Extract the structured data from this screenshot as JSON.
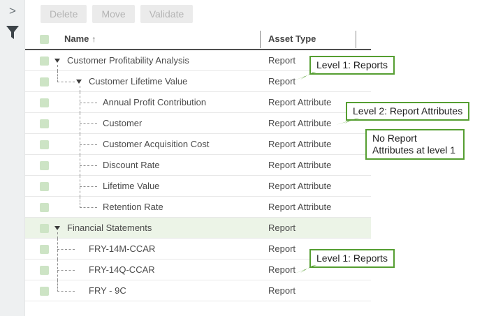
{
  "sidebar": {
    "chevron_glyph": ">",
    "filter_icon": "funnel"
  },
  "toolbar": {
    "buttons": [
      {
        "label": "Delete"
      },
      {
        "label": "Move"
      },
      {
        "label": "Validate"
      }
    ]
  },
  "table": {
    "columns": [
      {
        "label": "Name",
        "sort_indicator": "↑"
      },
      {
        "label": "Asset Type"
      }
    ],
    "rows": [
      {
        "name": "Customer Profitability Analysis",
        "type": "Report",
        "depth": 0,
        "expanded": true,
        "parent": true,
        "child": false,
        "last": false,
        "highlighted": false
      },
      {
        "name": "Customer Lifetime Value",
        "type": "Report",
        "depth": 1,
        "expanded": true,
        "parent": true,
        "child": true,
        "last": true,
        "highlighted": false
      },
      {
        "name": "Annual Profit Contribution",
        "type": "Report Attribute",
        "depth": 2,
        "expanded": false,
        "parent": false,
        "child": true,
        "last": false,
        "highlighted": false
      },
      {
        "name": "Customer",
        "type": "Report Attribute",
        "depth": 2,
        "expanded": false,
        "parent": false,
        "child": true,
        "last": false,
        "highlighted": false
      },
      {
        "name": "Customer Acquisition Cost",
        "type": "Report Attribute",
        "depth": 2,
        "expanded": false,
        "parent": false,
        "child": true,
        "last": false,
        "highlighted": false
      },
      {
        "name": "Discount Rate",
        "type": "Report Attribute",
        "depth": 2,
        "expanded": false,
        "parent": false,
        "child": true,
        "last": false,
        "highlighted": false
      },
      {
        "name": "Lifetime Value",
        "type": "Report Attribute",
        "depth": 2,
        "expanded": false,
        "parent": false,
        "child": true,
        "last": false,
        "highlighted": false
      },
      {
        "name": "Retention Rate",
        "type": "Report Attribute",
        "depth": 2,
        "expanded": false,
        "parent": false,
        "child": true,
        "last": true,
        "highlighted": false
      },
      {
        "name": "Financial Statements",
        "type": "Report",
        "depth": 0,
        "expanded": true,
        "parent": true,
        "child": false,
        "last": false,
        "highlighted": true
      },
      {
        "name": "FRY-14M-CCAR",
        "type": "Report",
        "depth": 1,
        "expanded": false,
        "parent": false,
        "child": true,
        "last": false,
        "highlighted": false
      },
      {
        "name": "FRY-14Q-CCAR",
        "type": "Report",
        "depth": 1,
        "expanded": false,
        "parent": false,
        "child": true,
        "last": false,
        "highlighted": false
      },
      {
        "name": "FRY - 9C",
        "type": "Report",
        "depth": 1,
        "expanded": false,
        "parent": false,
        "child": true,
        "last": true,
        "highlighted": false
      }
    ]
  },
  "callouts": [
    {
      "text": "Level 1: Reports"
    },
    {
      "text": "Level 2: Report Attributes"
    },
    {
      "text": "No Report Attributes at level 1"
    },
    {
      "text": "Level 1: Reports"
    }
  ],
  "colors": {
    "callout_green": "#559e31",
    "checkbox_green": "#cde4c5",
    "row_highlight": "#ecf4e7",
    "sidebar_bg": "#eef0f1"
  }
}
